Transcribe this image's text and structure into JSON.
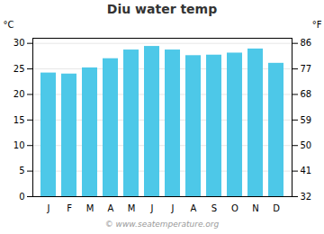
{
  "chart_data": {
    "type": "bar",
    "title": "Diu water temp",
    "categories": [
      "J",
      "F",
      "M",
      "A",
      "M",
      "J",
      "J",
      "A",
      "S",
      "O",
      "N",
      "D"
    ],
    "values": [
      24.2,
      24.0,
      25.2,
      27.0,
      28.7,
      29.4,
      28.7,
      27.6,
      27.7,
      28.1,
      28.9,
      26.1
    ],
    "color": "#4DC8E8",
    "ylabel": "°C",
    "ylim": [
      0,
      31
    ],
    "yticks": [
      0,
      5,
      10,
      15,
      20,
      25,
      30
    ],
    "y2label": "°F",
    "y2lim": [
      32,
      87.8
    ],
    "y2ticks": [
      32,
      41,
      50,
      59,
      68,
      77,
      86
    ],
    "grid": true,
    "caption": "© www.seatemperature.org"
  }
}
